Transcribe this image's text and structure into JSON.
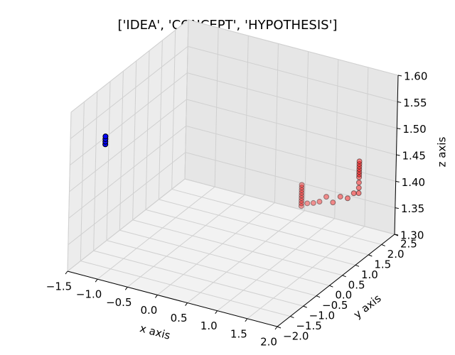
{
  "chart_data": {
    "type": "scatter3d",
    "title": "['IDEA', 'CONCEPT', 'HYPOTHESIS']",
    "xlabel": "x axis",
    "ylabel": "y axis",
    "zlabel": "z axis",
    "xlim": [
      -1.5,
      2.0
    ],
    "ylim": [
      -2.0,
      2.5
    ],
    "zlim": [
      1.3,
      1.6
    ],
    "xticks": [
      {
        "value": -1.5,
        "label": "−1.5"
      },
      {
        "value": -1.0,
        "label": "−1.0"
      },
      {
        "value": -0.5,
        "label": "−0.5"
      },
      {
        "value": 0.0,
        "label": "0.0"
      },
      0.5,
      {
        "value": 1.0,
        "label": "1.0"
      },
      1.5,
      {
        "value": 2.0,
        "label": "2.0"
      }
    ],
    "yticks": [
      {
        "value": -2.0,
        "label": "−2.0"
      },
      {
        "value": -1.5,
        "label": "−1.5"
      },
      {
        "value": -1.0,
        "label": "−1.0"
      },
      {
        "value": -0.5,
        "label": "−0.5"
      },
      {
        "value": 0.0,
        "label": "0.0"
      },
      0.5,
      {
        "value": 1.0,
        "label": "1.0"
      },
      1.5,
      {
        "value": 2.0,
        "label": "2.0"
      },
      2.5
    ],
    "zticks": [
      {
        "value": 1.3,
        "label": "1.30"
      },
      1.35,
      {
        "value": 1.4,
        "label": "1.40"
      },
      1.45,
      {
        "value": 1.5,
        "label": "1.50"
      },
      1.55,
      {
        "value": 1.6,
        "label": "1.60"
      }
    ],
    "grid": true,
    "series": [
      {
        "color": "#0000ff",
        "x": [
          -1.43,
          -1.43,
          -1.43,
          -1.43
        ],
        "y": [
          -0.8,
          -0.8,
          -0.8,
          -0.8
        ],
        "z": [
          1.495,
          1.5,
          1.505,
          1.51
        ]
      },
      {
        "color": "#ff0000",
        "x": [
          0.8,
          0.8,
          0.8,
          0.8,
          0.8,
          0.8,
          0.8,
          0.8,
          0.8,
          0.88,
          0.96,
          1.04,
          1.13,
          1.22,
          1.32,
          1.42,
          1.5,
          1.56,
          1.56,
          1.56,
          1.56,
          1.56,
          1.56,
          1.56,
          1.56,
          1.56,
          1.56
        ],
        "y": [
          1.66,
          1.66,
          1.66,
          1.66,
          1.66,
          1.66,
          1.66,
          1.66,
          1.66,
          1.7,
          1.75,
          1.8,
          1.85,
          1.9,
          1.95,
          2.0,
          2.05,
          2.1,
          2.1,
          2.1,
          2.1,
          2.1,
          2.1,
          2.1,
          2.1,
          2.1,
          2.1
        ],
        "z": [
          1.35,
          1.355,
          1.36,
          1.365,
          1.37,
          1.375,
          1.38,
          1.385,
          1.39,
          1.356,
          1.357,
          1.36,
          1.37,
          1.36,
          1.372,
          1.37,
          1.38,
          1.38,
          1.39,
          1.4,
          1.41,
          1.415,
          1.42,
          1.425,
          1.43,
          1.435,
          1.44
        ]
      }
    ]
  }
}
